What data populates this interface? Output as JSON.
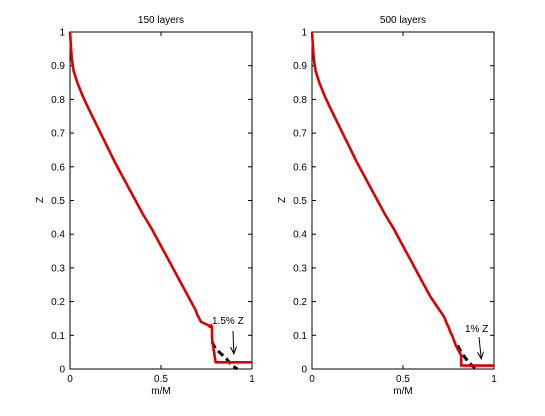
{
  "chart_data": [
    {
      "type": "line",
      "title": "150 layers",
      "xlabel": "m/M",
      "ylabel": "Z",
      "xlim": [
        0,
        1
      ],
      "ylim": [
        0,
        1
      ],
      "xticks": [
        "0",
        "0.5",
        "1"
      ],
      "yticks": [
        "0",
        "0.1",
        "0.2",
        "0.3",
        "0.4",
        "0.5",
        "0.6",
        "0.7",
        "0.8",
        "0.9",
        "1"
      ],
      "grid": false,
      "annotation": {
        "text": "1.5% Z",
        "arrow_to": [
          0.9,
          0.045
        ]
      },
      "series": [
        {
          "style": "solid",
          "color": "#dd0000",
          "x": [
            0,
            0.005,
            0.01,
            0.02,
            0.04,
            0.07,
            0.1,
            0.15,
            0.2,
            0.25,
            0.3,
            0.35,
            0.4,
            0.45,
            0.5,
            0.55,
            0.6,
            0.65,
            0.68,
            0.69,
            0.7,
            0.71,
            0.72,
            0.74,
            0.76,
            0.77,
            0.775,
            0.78,
            0.78,
            0.8,
            0.82,
            1.0
          ],
          "y": [
            1.0,
            0.96,
            0.92,
            0.885,
            0.85,
            0.81,
            0.775,
            0.72,
            0.665,
            0.61,
            0.56,
            0.51,
            0.46,
            0.415,
            0.365,
            0.315,
            0.265,
            0.215,
            0.185,
            0.175,
            0.16,
            0.15,
            0.14,
            0.135,
            0.13,
            0.125,
            0.13,
            0.125,
            0.09,
            0.02,
            0.02,
            0.02
          ]
        },
        {
          "style": "dashed",
          "color": "#000000",
          "x": [
            0.78,
            0.8,
            0.83,
            0.86,
            0.89,
            0.92
          ],
          "y": [
            0.08,
            0.06,
            0.045,
            0.03,
            0.01,
            0.0
          ]
        }
      ]
    },
    {
      "type": "line",
      "title": "500 layers",
      "xlabel": "m/M",
      "ylabel": "Z",
      "xlim": [
        0,
        1
      ],
      "ylim": [
        0,
        1
      ],
      "xticks": [
        "0",
        "0.5",
        "1"
      ],
      "yticks": [
        "0",
        "0.1",
        "0.2",
        "0.3",
        "0.4",
        "0.5",
        "0.6",
        "0.7",
        "0.8",
        "0.9",
        "1"
      ],
      "grid": false,
      "annotation": {
        "text": "1% Z",
        "arrow_to": [
          0.93,
          0.03
        ]
      },
      "series": [
        {
          "style": "solid",
          "color": "#dd0000",
          "x": [
            0,
            0.005,
            0.01,
            0.02,
            0.04,
            0.07,
            0.1,
            0.15,
            0.2,
            0.25,
            0.3,
            0.35,
            0.4,
            0.45,
            0.5,
            0.55,
            0.6,
            0.65,
            0.7,
            0.72,
            0.73,
            0.74,
            0.75,
            0.76,
            0.77,
            0.78,
            0.79,
            0.8,
            0.82,
            0.82,
            1.0
          ],
          "y": [
            1.0,
            0.96,
            0.92,
            0.885,
            0.85,
            0.81,
            0.775,
            0.72,
            0.665,
            0.61,
            0.56,
            0.51,
            0.46,
            0.415,
            0.365,
            0.315,
            0.265,
            0.215,
            0.175,
            0.16,
            0.15,
            0.135,
            0.125,
            0.11,
            0.1,
            0.085,
            0.07,
            0.06,
            0.04,
            0.01,
            0.01
          ]
        },
        {
          "style": "dashed",
          "color": "#000000",
          "x": [
            0.8,
            0.82,
            0.84,
            0.86,
            0.88,
            0.9
          ],
          "y": [
            0.07,
            0.05,
            0.035,
            0.02,
            0.01,
            0.0
          ]
        }
      ]
    }
  ]
}
